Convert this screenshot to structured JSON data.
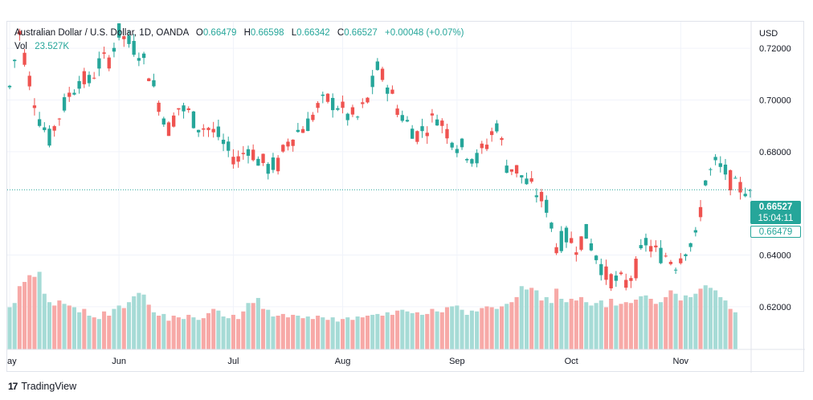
{
  "legend": {
    "symbol": "Australian Dollar / U.S. Dollar, 1D, OANDA",
    "o_label": "O",
    "o_value": "0.66479",
    "h_label": "H",
    "h_value": "0.66598",
    "l_label": "L",
    "l_value": "0.66342",
    "c_label": "C",
    "c_value": "0.66527",
    "change": "+0.00048 (+0.07%)",
    "vol_label": "Vol",
    "vol_value": "23.527K"
  },
  "brand": {
    "logo": "17",
    "name": "TradingView"
  },
  "colors": {
    "up": "#26a69a",
    "down": "#ef5350",
    "vol_up": "#a6dbd6",
    "vol_down": "#f7a9a7",
    "grid": "#f0f3fa",
    "text": "#131722"
  },
  "price_tags": {
    "last": "0.66527",
    "countdown": "15:04:11",
    "open": "0.66479"
  },
  "chart_data": {
    "type": "candlestick",
    "currency": "USD",
    "y_ticks": [
      "0.72000",
      "0.70000",
      "0.68000",
      "0.64000",
      "0.62000"
    ],
    "y_tick_values": [
      0.72,
      0.7,
      0.68,
      0.64,
      0.62
    ],
    "x_ticks": [
      "ay",
      "Jun",
      "Jul",
      "Aug",
      "Sep",
      "Oct",
      "Nov"
    ],
    "x_tick_days": [
      0,
      22,
      45,
      67,
      90,
      113,
      135
    ],
    "ylim": [
      0.6035,
      0.7303
    ],
    "last_close": 0.66527,
    "open": 0.66479,
    "anchors": [
      [
        0,
        0.705
      ],
      [
        2,
        0.726
      ],
      [
        4,
        0.708
      ],
      [
        6,
        0.693
      ],
      [
        8,
        0.685
      ],
      [
        10,
        0.694
      ],
      [
        12,
        0.702
      ],
      [
        14,
        0.708
      ],
      [
        16,
        0.707
      ],
      [
        18,
        0.714
      ],
      [
        20,
        0.716
      ],
      [
        22,
        0.726
      ],
      [
        24,
        0.722
      ],
      [
        26,
        0.719
      ],
      [
        28,
        0.711
      ],
      [
        30,
        0.699
      ],
      [
        32,
        0.689
      ],
      [
        34,
        0.697
      ],
      [
        36,
        0.695
      ],
      [
        38,
        0.69
      ],
      [
        40,
        0.689
      ],
      [
        42,
        0.686
      ],
      [
        44,
        0.68
      ],
      [
        46,
        0.677
      ],
      [
        48,
        0.682
      ],
      [
        50,
        0.677
      ],
      [
        52,
        0.674
      ],
      [
        54,
        0.675
      ],
      [
        56,
        0.684
      ],
      [
        58,
        0.688
      ],
      [
        60,
        0.691
      ],
      [
        62,
        0.697
      ],
      [
        64,
        0.7
      ],
      [
        66,
        0.698
      ],
      [
        68,
        0.694
      ],
      [
        70,
        0.693
      ],
      [
        72,
        0.7
      ],
      [
        74,
        0.712
      ],
      [
        76,
        0.706
      ],
      [
        78,
        0.697
      ],
      [
        80,
        0.691
      ],
      [
        82,
        0.687
      ],
      [
        84,
        0.69
      ],
      [
        86,
        0.694
      ],
      [
        88,
        0.688
      ],
      [
        90,
        0.683
      ],
      [
        92,
        0.68
      ],
      [
        94,
        0.677
      ],
      [
        96,
        0.683
      ],
      [
        98,
        0.691
      ],
      [
        100,
        0.675
      ],
      [
        102,
        0.673
      ],
      [
        104,
        0.668
      ],
      [
        106,
        0.664
      ],
      [
        108,
        0.659
      ],
      [
        110,
        0.644
      ],
      [
        112,
        0.647
      ],
      [
        114,
        0.644
      ],
      [
        116,
        0.648
      ],
      [
        118,
        0.64
      ],
      [
        120,
        0.632
      ],
      [
        122,
        0.63
      ],
      [
        124,
        0.629
      ],
      [
        126,
        0.635
      ],
      [
        128,
        0.645
      ],
      [
        130,
        0.641
      ],
      [
        132,
        0.64
      ],
      [
        134,
        0.637
      ],
      [
        136,
        0.643
      ],
      [
        138,
        0.646
      ],
      [
        140,
        0.669
      ],
      [
        142,
        0.675
      ],
      [
        144,
        0.672
      ],
      [
        146,
        0.666
      ]
    ],
    "volumes": [
      0.5,
      0.55,
      0.75,
      0.8,
      0.88,
      0.86,
      0.92,
      0.66,
      0.56,
      0.52,
      0.58,
      0.54,
      0.52,
      0.5,
      0.44,
      0.48,
      0.4,
      0.38,
      0.36,
      0.45,
      0.4,
      0.48,
      0.52,
      0.49,
      0.56,
      0.63,
      0.67,
      0.65,
      0.53,
      0.44,
      0.4,
      0.42,
      0.34,
      0.4,
      0.38,
      0.36,
      0.41,
      0.38,
      0.35,
      0.37,
      0.43,
      0.48,
      0.46,
      0.39,
      0.37,
      0.41,
      0.36,
      0.45,
      0.55,
      0.55,
      0.61,
      0.48,
      0.47,
      0.39,
      0.4,
      0.42,
      0.38,
      0.41,
      0.4,
      0.37,
      0.39,
      0.36,
      0.4,
      0.38,
      0.35,
      0.38,
      0.33,
      0.36,
      0.38,
      0.35,
      0.39,
      0.38,
      0.4,
      0.41,
      0.42,
      0.4,
      0.44,
      0.41,
      0.46,
      0.47,
      0.45,
      0.43,
      0.44,
      0.41,
      0.42,
      0.48,
      0.45,
      0.44,
      0.5,
      0.51,
      0.52,
      0.47,
      0.41,
      0.46,
      0.45,
      0.49,
      0.51,
      0.5,
      0.48,
      0.51,
      0.54,
      0.56,
      0.62,
      0.75,
      0.71,
      0.73,
      0.7,
      0.58,
      0.62,
      0.55,
      0.72,
      0.6,
      0.56,
      0.6,
      0.58,
      0.62,
      0.56,
      0.52,
      0.55,
      0.58,
      0.5,
      0.6,
      0.52,
      0.54,
      0.56,
      0.55,
      0.59,
      0.63,
      0.64,
      0.6,
      0.54,
      0.56,
      0.62,
      0.7,
      0.66,
      0.58,
      0.64,
      0.62,
      0.66,
      0.72,
      0.76,
      0.73,
      0.7,
      0.62,
      0.58,
      0.48,
      0.44
    ]
  }
}
